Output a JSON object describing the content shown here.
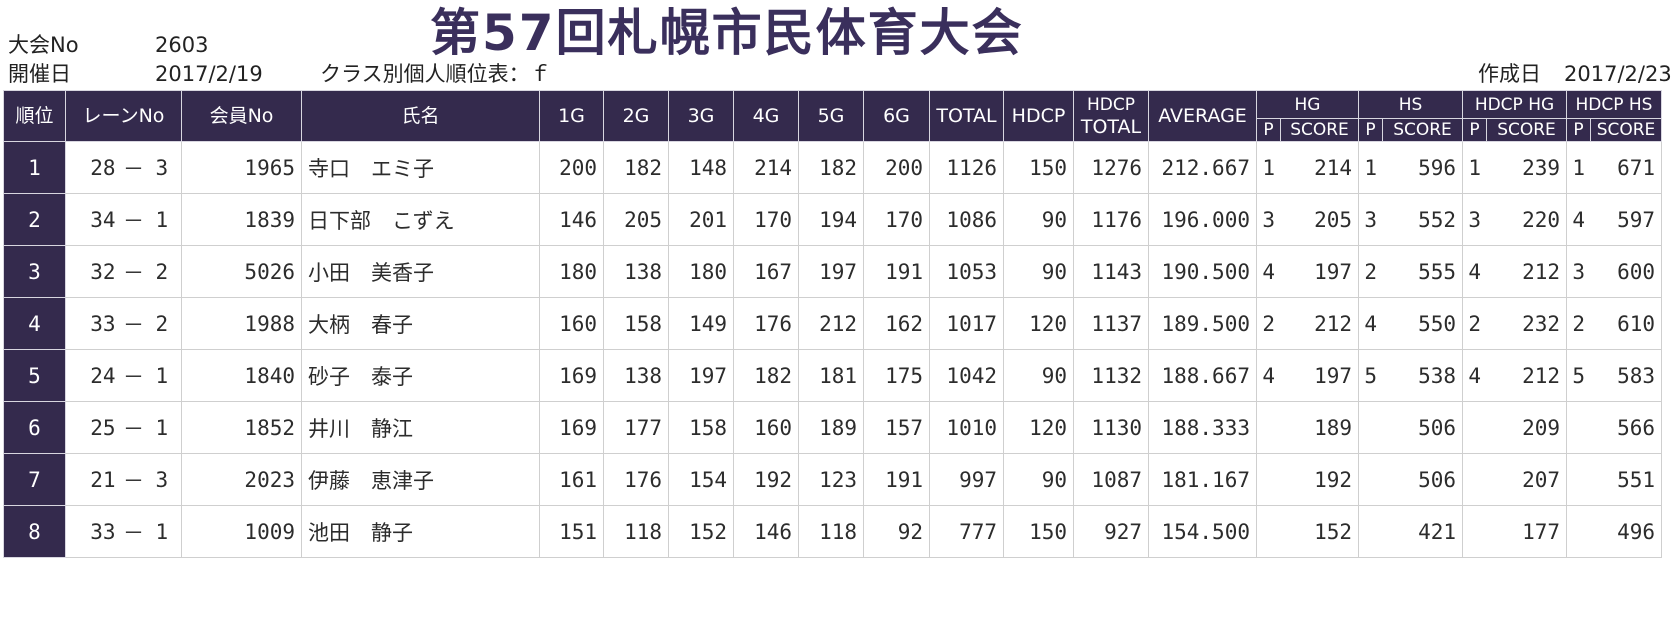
{
  "title": "第57回札幌市民体育大会",
  "meta": {
    "tournament_no_label": "大会No",
    "tournament_no": "2603",
    "date_label": "開催日",
    "date": "2017/2/19",
    "class_label": "クラス別個人順位表：ｆ",
    "created_label": "作成日",
    "created_date": "2017/2/23"
  },
  "headers": {
    "rank": "順位",
    "lane": "レーンNo",
    "member": "会員No",
    "name": "氏名",
    "games": [
      "1G",
      "2G",
      "3G",
      "4G",
      "5G",
      "6G"
    ],
    "total": "TOTAL",
    "hdcp": "HDCP",
    "hdcp_total_1": "HDCP",
    "hdcp_total_2": "TOTAL",
    "average": "AVERAGE",
    "groups": [
      "HG",
      "HS",
      "HDCP HG",
      "HDCP HS"
    ],
    "p": "P",
    "score": "SCORE"
  },
  "rows": [
    {
      "rank": "1",
      "lane": "28",
      "dash": "－",
      "pos": "3",
      "member": "1965",
      "name": "寺口　エミ子",
      "g": [
        "200",
        "182",
        "148",
        "214",
        "182",
        "200"
      ],
      "total": "1126",
      "hdcp": "150",
      "hdcp_total": "1276",
      "avg": "212.667",
      "hg_p": "1",
      "hg": "214",
      "hs_p": "1",
      "hs": "596",
      "dhg_p": "1",
      "dhg": "239",
      "dhs_p": "1",
      "dhs": "671"
    },
    {
      "rank": "2",
      "lane": "34",
      "dash": "－",
      "pos": "1",
      "member": "1839",
      "name": "日下部　こずえ",
      "g": [
        "146",
        "205",
        "201",
        "170",
        "194",
        "170"
      ],
      "total": "1086",
      "hdcp": "90",
      "hdcp_total": "1176",
      "avg": "196.000",
      "hg_p": "3",
      "hg": "205",
      "hs_p": "3",
      "hs": "552",
      "dhg_p": "3",
      "dhg": "220",
      "dhs_p": "4",
      "dhs": "597"
    },
    {
      "rank": "3",
      "lane": "32",
      "dash": "－",
      "pos": "2",
      "member": "5026",
      "name": "小田　美香子",
      "g": [
        "180",
        "138",
        "180",
        "167",
        "197",
        "191"
      ],
      "total": "1053",
      "hdcp": "90",
      "hdcp_total": "1143",
      "avg": "190.500",
      "hg_p": "4",
      "hg": "197",
      "hs_p": "2",
      "hs": "555",
      "dhg_p": "4",
      "dhg": "212",
      "dhs_p": "3",
      "dhs": "600"
    },
    {
      "rank": "4",
      "lane": "33",
      "dash": "－",
      "pos": "2",
      "member": "1988",
      "name": "大柄　春子",
      "g": [
        "160",
        "158",
        "149",
        "176",
        "212",
        "162"
      ],
      "total": "1017",
      "hdcp": "120",
      "hdcp_total": "1137",
      "avg": "189.500",
      "hg_p": "2",
      "hg": "212",
      "hs_p": "4",
      "hs": "550",
      "dhg_p": "2",
      "dhg": "232",
      "dhs_p": "2",
      "dhs": "610"
    },
    {
      "rank": "5",
      "lane": "24",
      "dash": "－",
      "pos": "1",
      "member": "1840",
      "name": "砂子　泰子",
      "g": [
        "169",
        "138",
        "197",
        "182",
        "181",
        "175"
      ],
      "total": "1042",
      "hdcp": "90",
      "hdcp_total": "1132",
      "avg": "188.667",
      "hg_p": "4",
      "hg": "197",
      "hs_p": "5",
      "hs": "538",
      "dhg_p": "4",
      "dhg": "212",
      "dhs_p": "5",
      "dhs": "583"
    },
    {
      "rank": "6",
      "lane": "25",
      "dash": "－",
      "pos": "1",
      "member": "1852",
      "name": "井川　静江",
      "g": [
        "169",
        "177",
        "158",
        "160",
        "189",
        "157"
      ],
      "total": "1010",
      "hdcp": "120",
      "hdcp_total": "1130",
      "avg": "188.333",
      "hg_p": "",
      "hg": "189",
      "hs_p": "",
      "hs": "506",
      "dhg_p": "",
      "dhg": "209",
      "dhs_p": "",
      "dhs": "566"
    },
    {
      "rank": "7",
      "lane": "21",
      "dash": "－",
      "pos": "3",
      "member": "2023",
      "name": "伊藤　恵津子",
      "g": [
        "161",
        "176",
        "154",
        "192",
        "123",
        "191"
      ],
      "total": "997",
      "hdcp": "90",
      "hdcp_total": "1087",
      "avg": "181.167",
      "hg_p": "",
      "hg": "192",
      "hs_p": "",
      "hs": "506",
      "dhg_p": "",
      "dhg": "207",
      "dhs_p": "",
      "dhs": "551"
    },
    {
      "rank": "8",
      "lane": "33",
      "dash": "－",
      "pos": "1",
      "member": "1009",
      "name": "池田　静子",
      "g": [
        "151",
        "118",
        "152",
        "146",
        "118",
        "92"
      ],
      "total": "777",
      "hdcp": "150",
      "hdcp_total": "927",
      "avg": "154.500",
      "hg_p": "",
      "hg": "152",
      "hs_p": "",
      "hs": "421",
      "dhg_p": "",
      "dhg": "177",
      "dhs_p": "",
      "dhs": "496"
    }
  ]
}
